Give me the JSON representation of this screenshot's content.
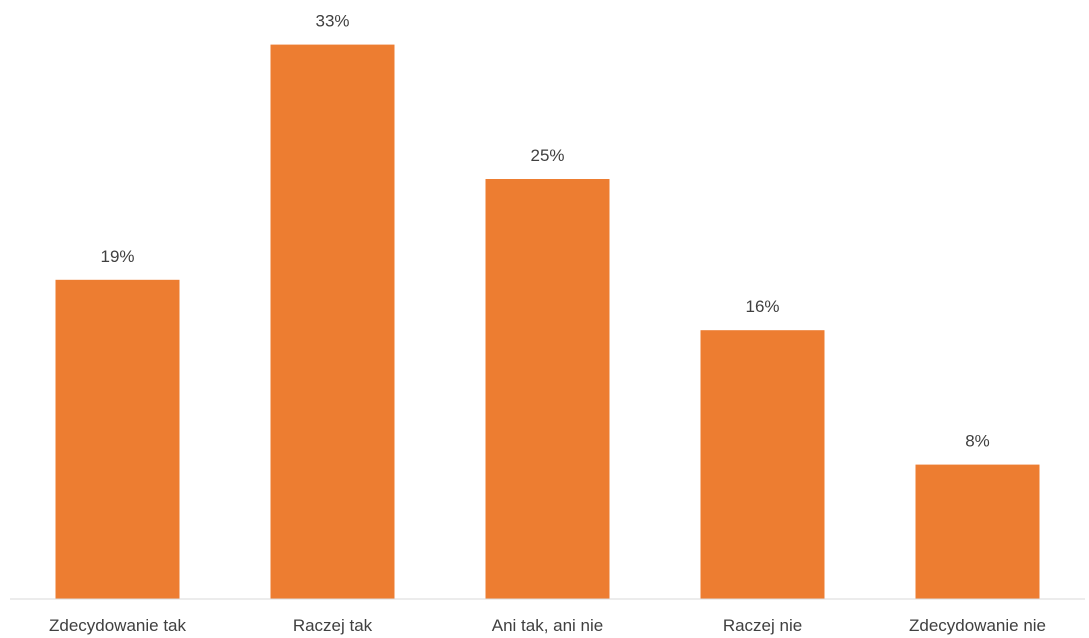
{
  "chart_data": {
    "type": "bar",
    "title": "",
    "xlabel": "",
    "ylabel": "",
    "categories": [
      "Zdecydowanie tak",
      "Raczej tak",
      "Ani tak, ani nie",
      "Raczej nie",
      "Zdecydowanie nie"
    ],
    "values": [
      19,
      33,
      25,
      16,
      8
    ],
    "value_labels": [
      "19%",
      "33%",
      "25%",
      "16%",
      "8%"
    ],
    "unit": "%",
    "ylim": [
      0,
      35
    ],
    "grid": false,
    "legend": "none",
    "colors": {
      "bar": "#ED7D31",
      "axis": "#D9D9D9",
      "text": "#404040"
    }
  }
}
